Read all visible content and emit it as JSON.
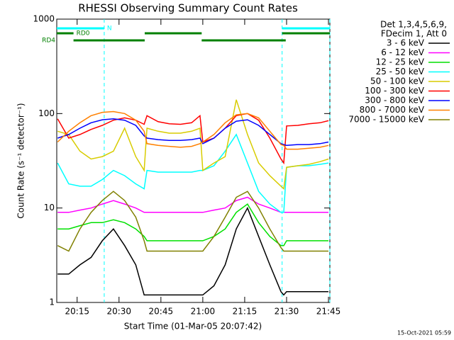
{
  "chart_data": {
    "type": "line",
    "title": "RHESSI Observing Summary Count Rates",
    "x_label": "Start Time (01-Mar-05 20:07:42)",
    "y_label": "Count Rate (s⁻¹ detector⁻¹)",
    "footer": "15-Oct-2021 05:59",
    "legend_header": [
      "Det 1,3,4,5,6,9,",
      "FDecim 1, Att 0"
    ],
    "log_y": true,
    "xlim": [
      7.7,
      105.5
    ],
    "xticks": [
      {
        "value": 15,
        "label": "20:15"
      },
      {
        "value": 30,
        "label": "20:30"
      },
      {
        "value": 45,
        "label": "20:45"
      },
      {
        "value": 60,
        "label": "21:00"
      },
      {
        "value": 75,
        "label": "21:15"
      },
      {
        "value": 90,
        "label": "21:30"
      },
      {
        "value": 105,
        "label": "21:45"
      }
    ],
    "ylim": [
      1,
      1000
    ],
    "yticks": [
      1,
      10,
      100,
      1000
    ],
    "x": [
      8,
      12,
      16,
      20,
      24,
      28,
      32,
      36,
      39,
      40,
      44,
      48,
      52,
      56,
      59,
      60,
      64,
      68,
      72,
      76,
      80,
      84,
      88,
      89,
      90,
      94,
      98,
      102,
      105
    ],
    "series": [
      {
        "name": "3 - 6 keV",
        "color": "#000000",
        "values": [
          2,
          2,
          2.5,
          3,
          4.5,
          6,
          4,
          2.5,
          1.2,
          1.2,
          1.2,
          1.2,
          1.2,
          1.2,
          1.2,
          1.2,
          1.5,
          2.5,
          6,
          10,
          5,
          2.5,
          1.3,
          1.2,
          1.3,
          1.3,
          1.3,
          1.3,
          1.3
        ]
      },
      {
        "name": "6 - 12 keV",
        "color": "#ff00ff",
        "values": [
          9,
          9,
          9.5,
          10,
          11,
          12,
          11,
          10,
          9,
          9,
          9,
          9,
          9,
          9,
          9,
          9,
          9.5,
          10,
          12,
          13,
          11,
          10,
          9,
          9,
          9,
          9,
          9,
          9,
          9
        ]
      },
      {
        "name": "12 - 25 keV",
        "color": "#00e000",
        "values": [
          6,
          6,
          6.5,
          7,
          7,
          7.5,
          7,
          6,
          5,
          4.5,
          4.5,
          4.5,
          4.5,
          4.5,
          4.5,
          4.5,
          5,
          6,
          9,
          11,
          7,
          5,
          4,
          4,
          4.5,
          4.5,
          4.5,
          4.5,
          4.5
        ]
      },
      {
        "name": "25 - 50 keV",
        "color": "#00ffff",
        "values": [
          30,
          18,
          17,
          17,
          20,
          25,
          22,
          18,
          16,
          25,
          24,
          24,
          24,
          24,
          25,
          25,
          28,
          40,
          60,
          30,
          15,
          11,
          9,
          9,
          27,
          28,
          28,
          29,
          30
        ]
      },
      {
        "name": "50 - 100 keV",
        "color": "#d8cc00",
        "values": [
          65,
          60,
          40,
          33,
          35,
          40,
          70,
          35,
          25,
          70,
          65,
          62,
          62,
          65,
          70,
          25,
          30,
          35,
          140,
          60,
          30,
          22,
          17,
          16,
          27,
          28,
          29,
          31,
          33
        ]
      },
      {
        "name": "100 - 300 keV",
        "color": "#ff0000",
        "values": [
          88,
          55,
          60,
          68,
          75,
          85,
          90,
          85,
          77,
          95,
          82,
          78,
          77,
          80,
          95,
          50,
          55,
          70,
          95,
          100,
          85,
          55,
          33,
          30,
          74,
          75,
          78,
          80,
          84
        ]
      },
      {
        "name": "300 - 800 keV",
        "color": "#0000ff",
        "values": [
          55,
          60,
          70,
          80,
          86,
          88,
          85,
          75,
          58,
          55,
          53,
          52,
          52,
          53,
          55,
          48,
          55,
          70,
          83,
          86,
          75,
          60,
          48,
          47,
          46,
          47,
          47,
          48,
          50
        ]
      },
      {
        "name": "800 - 7000 keV",
        "color": "#ff8000",
        "values": [
          50,
          65,
          80,
          95,
          103,
          105,
          100,
          85,
          65,
          48,
          46,
          45,
          44,
          45,
          48,
          50,
          60,
          80,
          97,
          100,
          90,
          65,
          47,
          46,
          42,
          42,
          43,
          44,
          46
        ]
      },
      {
        "name": "7000 - 15000 keV",
        "color": "#808000",
        "values": [
          4,
          3.5,
          6,
          9,
          12,
          15,
          12,
          8,
          4.5,
          3.5,
          3.5,
          3.5,
          3.5,
          3.5,
          3.5,
          3.5,
          5,
          8,
          13,
          15,
          10,
          6,
          3.8,
          3.5,
          3.5,
          3.5,
          3.5,
          3.5,
          3.5
        ]
      }
    ],
    "flags": [
      {
        "label": "N",
        "color": "#00ffff",
        "segments": [
          [
            7.7,
            24.7
          ],
          [
            88.4,
            105.5
          ]
        ]
      },
      {
        "label": "RD0",
        "color": "#008000",
        "segments": [
          [
            7.7,
            13.7
          ],
          [
            39.2,
            59.6
          ],
          [
            88.4,
            105.5
          ]
        ]
      },
      {
        "label": "RD4",
        "color": "#008000",
        "segments": [
          [
            13.7,
            39.2
          ],
          [
            59.6,
            89.7
          ]
        ]
      }
    ]
  }
}
